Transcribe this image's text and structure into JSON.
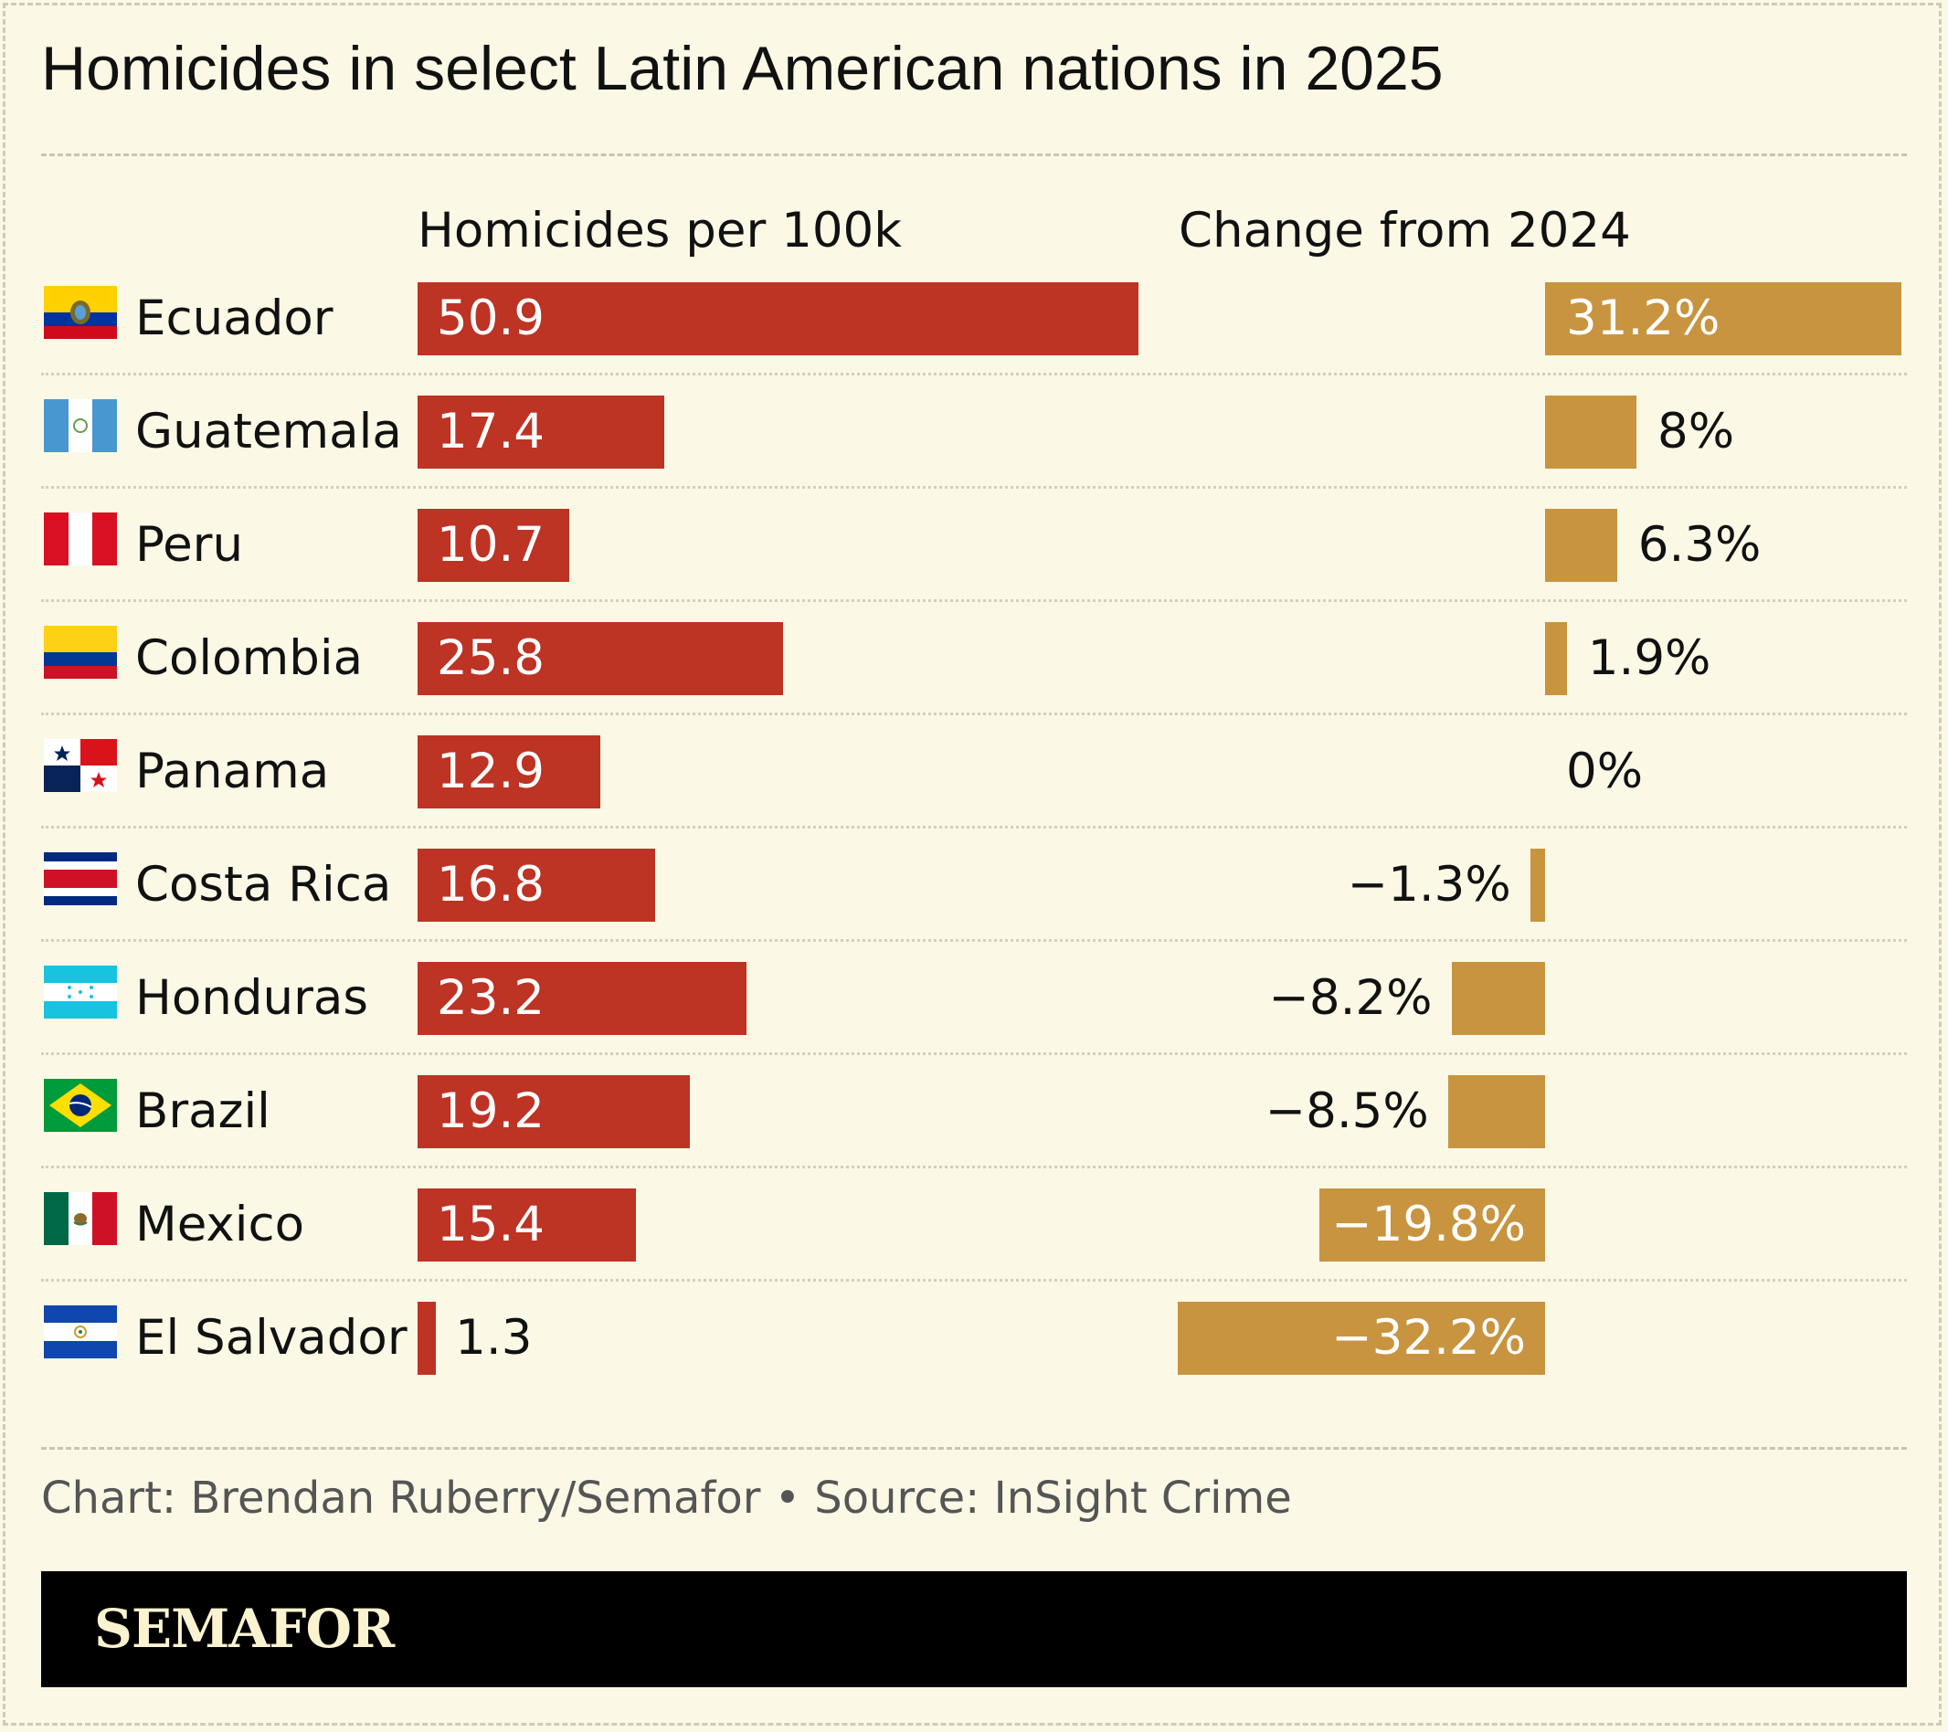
{
  "title": "Homicides in select Latin American nations in 2025",
  "credit": "Chart: Brendan Ruberry/Semafor • Source: InSight Crime",
  "brand": "SEMAFOR",
  "colors": {
    "homicide_bar": "#bd3324",
    "change_bar": "#c89440",
    "background": "#fbf9e6"
  },
  "chart_data": {
    "type": "bar",
    "categories": [
      "Ecuador",
      "Guatemala",
      "Peru",
      "Colombia",
      "Panama",
      "Costa Rica",
      "Honduras",
      "Brazil",
      "Mexico",
      "El Salvador"
    ],
    "series": [
      {
        "name": "Homicides per 100k",
        "values": [
          50.9,
          17.4,
          10.7,
          25.8,
          12.9,
          16.8,
          23.2,
          19.2,
          15.4,
          1.3
        ],
        "labels": [
          "50.9",
          "17.4",
          "10.7",
          "25.8",
          "12.9",
          "16.8",
          "23.2",
          "19.2",
          "15.4",
          "1.3"
        ]
      },
      {
        "name": "Change from 2024",
        "values": [
          31.2,
          8,
          6.3,
          1.9,
          0,
          -1.3,
          -8.2,
          -8.5,
          -19.8,
          -32.2
        ],
        "labels": [
          "31.2%",
          "8%",
          "6.3%",
          "1.9%",
          "0%",
          "−1.3%",
          "−8.2%",
          "−8.5%",
          "−19.8%",
          "−32.2%"
        ]
      }
    ],
    "flags": [
      "ecuador-flag-icon",
      "guatemala-flag-icon",
      "peru-flag-icon",
      "colombia-flag-icon",
      "panama-flag-icon",
      "costa-rica-flag-icon",
      "honduras-flag-icon",
      "brazil-flag-icon",
      "mexico-flag-icon",
      "el-salvador-flag-icon"
    ]
  }
}
